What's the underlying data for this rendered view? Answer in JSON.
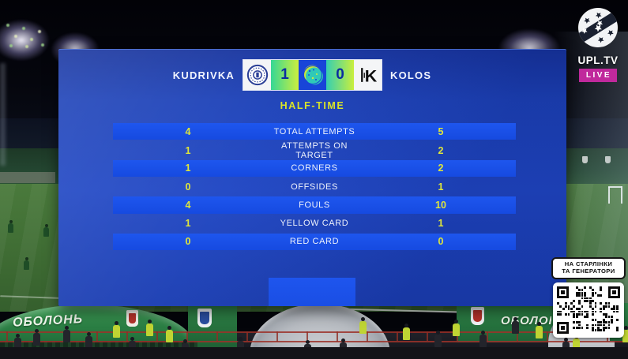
{
  "scoreboard": {
    "home_team": "KUDRIVKA",
    "away_team": "KOLOS",
    "home_score": "1",
    "away_score": "0",
    "period": "HALF-TIME"
  },
  "stats": {
    "rows": [
      {
        "label": "TOTAL ATTEMPTS",
        "home": "4",
        "away": "5"
      },
      {
        "label": "ATTEMPTS ON TARGET",
        "home": "1",
        "away": "2"
      },
      {
        "label": "CORNERS",
        "home": "1",
        "away": "2"
      },
      {
        "label": "OFFSIDES",
        "home": "0",
        "away": "1"
      },
      {
        "label": "FOULS",
        "home": "4",
        "away": "10"
      },
      {
        "label": "YELLOW CARD",
        "home": "1",
        "away": "1"
      },
      {
        "label": "RED CARD",
        "home": "0",
        "away": "0"
      }
    ]
  },
  "broadcaster": {
    "name": "UPL.TV",
    "live_label": "LIVE"
  },
  "qr_promo": {
    "line1": "НА СТАРЛІНКИ",
    "line2": "ТА ГЕНЕРАТОРИ"
  },
  "background": {
    "sponsor_banner": "ОБОЛОНЬ"
  },
  "colors": {
    "panel_blue": "#1c41b6",
    "row_blue": "#1b52e8",
    "accent_yellow": "#dce72e",
    "score_gradient_green": "#35d795",
    "score_gradient_yellow": "#cdef3e",
    "score_digit_navy": "#0a2da0",
    "live_magenta": "#c0299c",
    "banner_green": "#2b7f44"
  }
}
